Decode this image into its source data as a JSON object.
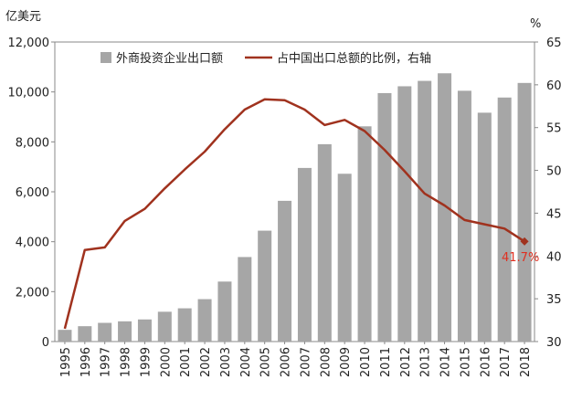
{
  "chart_data": {
    "type": "bar+line",
    "left_unit": "亿美元",
    "right_unit": "%",
    "categories": [
      "1995",
      "1996",
      "1997",
      "1998",
      "1999",
      "2000",
      "2001",
      "2002",
      "2003",
      "2004",
      "2005",
      "2006",
      "2007",
      "2008",
      "2009",
      "2010",
      "2011",
      "2012",
      "2013",
      "2014",
      "2015",
      "2016",
      "2017",
      "2018"
    ],
    "series": [
      {
        "name": "外商投资企业出口额",
        "type": "bar",
        "axis": "left",
        "color": "#a6a6a6",
        "values": [
          469,
          615,
          749,
          810,
          886,
          1194,
          1332,
          1699,
          2403,
          3386,
          4442,
          5638,
          6955,
          7906,
          6722,
          8623,
          9953,
          10227,
          10443,
          10747,
          10047,
          9168,
          9776,
          10360
        ]
      },
      {
        "name": "占中国出口总额的比例，右轴",
        "type": "line",
        "axis": "right",
        "color": "#a0321e",
        "values": [
          31.5,
          40.7,
          41.0,
          44.1,
          45.5,
          47.9,
          50.1,
          52.2,
          54.8,
          57.1,
          58.3,
          58.2,
          57.1,
          55.3,
          55.9,
          54.6,
          52.4,
          49.9,
          47.3,
          45.9,
          44.2,
          43.7,
          43.2,
          41.7
        ]
      }
    ],
    "left_axis": {
      "min": 0,
      "max": 12000,
      "ticks": [
        "0",
        "2,000",
        "4,000",
        "6,000",
        "8,000",
        "10,000",
        "12,000"
      ]
    },
    "right_axis": {
      "min": 30,
      "max": 65,
      "ticks": [
        "30",
        "35",
        "40",
        "45",
        "50",
        "55",
        "60",
        "65"
      ]
    },
    "annotation": {
      "text": "41.7%",
      "color": "#e03020"
    },
    "legend_position": "top"
  }
}
